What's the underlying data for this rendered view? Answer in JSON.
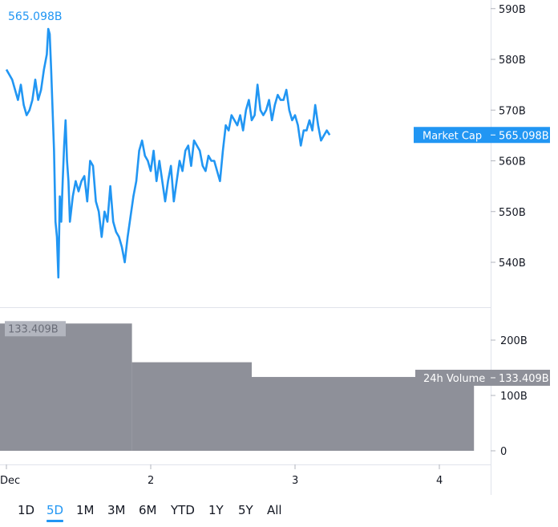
{
  "chart_data": [
    {
      "type": "line",
      "name": "Market Cap",
      "x_ticks": [
        "Dec",
        "2",
        "3",
        "4"
      ],
      "y_ticks": [
        "590B",
        "580B",
        "570B",
        "560B",
        "550B",
        "540B"
      ],
      "ylim": [
        533,
        592
      ],
      "xlim": [
        1.0,
        4.37
      ],
      "color": "#2196F3",
      "last_value_label": "565.098B",
      "series_tag": "Market Cap",
      "points": [
        [
          1.0,
          578
        ],
        [
          1.02,
          577
        ],
        [
          1.04,
          576
        ],
        [
          1.06,
          574
        ],
        [
          1.08,
          572
        ],
        [
          1.1,
          575
        ],
        [
          1.12,
          571
        ],
        [
          1.14,
          569
        ],
        [
          1.16,
          570
        ],
        [
          1.18,
          572
        ],
        [
          1.2,
          576
        ],
        [
          1.22,
          572
        ],
        [
          1.24,
          574
        ],
        [
          1.26,
          578
        ],
        [
          1.28,
          581
        ],
        [
          1.29,
          586
        ],
        [
          1.3,
          585
        ],
        [
          1.31,
          578
        ],
        [
          1.32,
          570
        ],
        [
          1.33,
          562
        ],
        [
          1.34,
          548
        ],
        [
          1.35,
          545
        ],
        [
          1.36,
          537
        ],
        [
          1.37,
          553
        ],
        [
          1.38,
          548
        ],
        [
          1.39,
          556
        ],
        [
          1.4,
          563
        ],
        [
          1.41,
          568
        ],
        [
          1.42,
          560
        ],
        [
          1.43,
          556
        ],
        [
          1.44,
          548
        ],
        [
          1.46,
          553
        ],
        [
          1.48,
          556
        ],
        [
          1.5,
          554
        ],
        [
          1.52,
          556
        ],
        [
          1.54,
          557
        ],
        [
          1.56,
          552
        ],
        [
          1.58,
          560
        ],
        [
          1.6,
          559
        ],
        [
          1.62,
          552
        ],
        [
          1.64,
          550
        ],
        [
          1.66,
          545
        ],
        [
          1.68,
          550
        ],
        [
          1.7,
          548
        ],
        [
          1.72,
          555
        ],
        [
          1.74,
          548
        ],
        [
          1.76,
          546
        ],
        [
          1.78,
          545
        ],
        [
          1.8,
          543
        ],
        [
          1.82,
          540
        ],
        [
          1.84,
          545
        ],
        [
          1.86,
          549
        ],
        [
          1.88,
          553
        ],
        [
          1.9,
          556
        ],
        [
          1.92,
          562
        ],
        [
          1.94,
          564
        ],
        [
          1.96,
          561
        ],
        [
          1.98,
          560
        ],
        [
          2.0,
          558
        ],
        [
          2.02,
          562
        ],
        [
          2.04,
          556
        ],
        [
          2.06,
          560
        ],
        [
          2.08,
          556
        ],
        [
          2.1,
          552
        ],
        [
          2.12,
          556
        ],
        [
          2.14,
          559
        ],
        [
          2.16,
          552
        ],
        [
          2.18,
          556
        ],
        [
          2.2,
          560
        ],
        [
          2.22,
          558
        ],
        [
          2.24,
          562
        ],
        [
          2.26,
          563
        ],
        [
          2.28,
          559
        ],
        [
          2.3,
          564
        ],
        [
          2.32,
          563
        ],
        [
          2.34,
          562
        ],
        [
          2.36,
          559
        ],
        [
          2.38,
          558
        ],
        [
          2.4,
          561
        ],
        [
          2.42,
          560
        ],
        [
          2.44,
          560
        ],
        [
          2.46,
          558
        ],
        [
          2.48,
          556
        ],
        [
          2.5,
          562
        ],
        [
          2.52,
          567
        ],
        [
          2.54,
          566
        ],
        [
          2.56,
          569
        ],
        [
          2.58,
          568
        ],
        [
          2.6,
          567
        ],
        [
          2.62,
          569
        ],
        [
          2.64,
          566
        ],
        [
          2.66,
          570
        ],
        [
          2.68,
          572
        ],
        [
          2.7,
          568
        ],
        [
          2.72,
          569
        ],
        [
          2.74,
          575
        ],
        [
          2.76,
          570
        ],
        [
          2.78,
          569
        ],
        [
          2.8,
          570
        ],
        [
          2.82,
          572
        ],
        [
          2.84,
          568
        ],
        [
          2.86,
          571
        ],
        [
          2.88,
          573
        ],
        [
          2.9,
          572
        ],
        [
          2.92,
          572
        ],
        [
          2.94,
          574
        ],
        [
          2.96,
          570
        ],
        [
          2.98,
          568
        ],
        [
          3.0,
          569
        ],
        [
          3.02,
          567
        ],
        [
          3.04,
          563
        ],
        [
          3.06,
          566
        ],
        [
          3.08,
          566
        ],
        [
          3.1,
          568
        ],
        [
          3.12,
          566
        ],
        [
          3.14,
          571
        ],
        [
          3.16,
          567
        ],
        [
          3.18,
          564
        ],
        [
          3.2,
          565
        ],
        [
          3.22,
          566
        ],
        [
          3.24,
          565.098
        ]
      ]
    },
    {
      "type": "bar",
      "name": "24h Volume",
      "y_ticks": [
        "200B",
        "100B",
        "0"
      ],
      "ylim": [
        0,
        246
      ],
      "color": "#8E9099",
      "bars": [
        {
          "x0": 1.0,
          "x1": 1.87,
          "value": 230
        },
        {
          "x0": 1.87,
          "x1": 2.7,
          "value": 160
        },
        {
          "x0": 2.7,
          "x1": 4.24,
          "value": 133.409
        }
      ],
      "peak_label": "133.409B",
      "last_value_label": "133.409B",
      "series_tag": "24h Volume"
    }
  ],
  "range_buttons": [
    "1D",
    "5D",
    "1M",
    "3M",
    "6M",
    "YTD",
    "1Y",
    "5Y",
    "All"
  ],
  "active_range": "5D"
}
